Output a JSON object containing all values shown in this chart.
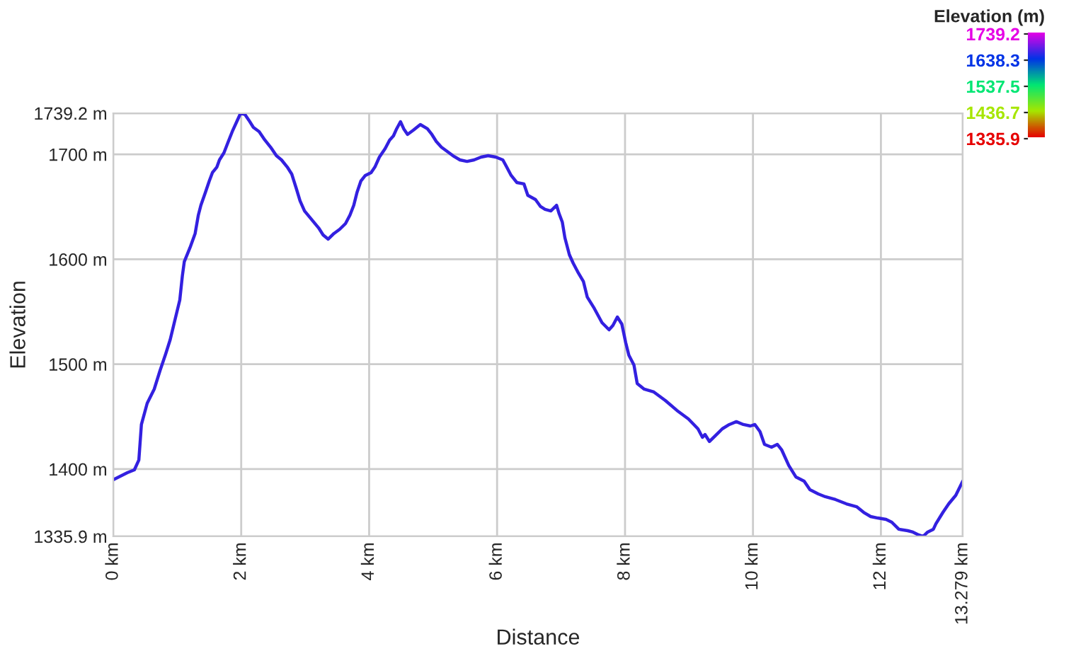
{
  "chart_data": {
    "type": "line",
    "xlabel": "Distance",
    "ylabel": "Elevation",
    "clabel": "Elevation (m)",
    "x": [
      0,
      0.22,
      0.33,
      0.4,
      0.44,
      0.53,
      0.64,
      0.73,
      0.82,
      0.89,
      0.97,
      1.04,
      1.08,
      1.11,
      1.2,
      1.28,
      1.33,
      1.37,
      1.44,
      1.5,
      1.55,
      1.62,
      1.66,
      1.73,
      1.79,
      1.86,
      1.93,
      1.99,
      2.06,
      2.12,
      2.19,
      2.28,
      2.37,
      2.46,
      2.55,
      2.63,
      2.72,
      2.79,
      2.86,
      2.92,
      2.99,
      3.1,
      3.21,
      3.28,
      3.36,
      3.45,
      3.54,
      3.63,
      3.7,
      3.76,
      3.81,
      3.87,
      3.94,
      4.03,
      4.09,
      4.16,
      4.25,
      4.32,
      4.38,
      4.43,
      4.49,
      4.54,
      4.6,
      4.69,
      4.8,
      4.91,
      4.98,
      5.05,
      5.13,
      5.22,
      5.31,
      5.42,
      5.53,
      5.64,
      5.75,
      5.86,
      5.98,
      6.09,
      6.15,
      6.22,
      6.31,
      6.42,
      6.48,
      6.6,
      6.68,
      6.75,
      6.84,
      6.91,
      6.93,
      6.97,
      7.02,
      7.06,
      7.13,
      7.19,
      7.26,
      7.35,
      7.41,
      7.52,
      7.64,
      7.75,
      7.81,
      7.88,
      7.95,
      8.01,
      8.06,
      8.14,
      8.19,
      8.3,
      8.45,
      8.63,
      8.81,
      8.99,
      9.14,
      9.21,
      9.25,
      9.32,
      9.41,
      9.52,
      9.63,
      9.74,
      9.85,
      9.96,
      10.03,
      10.11,
      10.18,
      10.29,
      10.38,
      10.45,
      10.56,
      10.67,
      10.8,
      10.89,
      11.02,
      11.13,
      11.29,
      11.46,
      11.62,
      11.73,
      11.84,
      11.95,
      12.08,
      12.17,
      12.28,
      12.42,
      12.5,
      12.59,
      12.66,
      12.73,
      12.82,
      12.86,
      12.97,
      13.06,
      13.17,
      13.279
    ],
    "series": [
      {
        "color": "#3320e0",
        "values": [
          1389.9,
          1396.6,
          1399.3,
          1408.7,
          1442.5,
          1462.7,
          1476.2,
          1493.7,
          1509.9,
          1523.4,
          1543.6,
          1561.2,
          1584.1,
          1597.6,
          1611.1,
          1624.6,
          1642.1,
          1651.5,
          1663.7,
          1674.5,
          1682.6,
          1687.9,
          1694.7,
          1701.4,
          1710.9,
          1721.7,
          1731.1,
          1739.2,
          1737.9,
          1732.5,
          1725.7,
          1721.7,
          1713.6,
          1706.8,
          1698.7,
          1694.7,
          1687.9,
          1681.2,
          1667.7,
          1655.6,
          1646.1,
          1638.0,
          1629.9,
          1623.2,
          1619.2,
          1624.6,
          1628.6,
          1634.0,
          1642.1,
          1651.5,
          1663.7,
          1674.5,
          1679.9,
          1682.6,
          1687.9,
          1697.4,
          1705.5,
          1713.6,
          1717.6,
          1724.4,
          1731.1,
          1724.4,
          1719.0,
          1723.0,
          1728.4,
          1724.4,
          1719.0,
          1712.2,
          1706.8,
          1702.8,
          1698.7,
          1694.7,
          1693.3,
          1694.7,
          1697.4,
          1698.7,
          1697.4,
          1694.7,
          1687.9,
          1679.9,
          1673.1,
          1671.8,
          1661.0,
          1656.9,
          1650.2,
          1647.5,
          1646.1,
          1650.2,
          1651.5,
          1643.4,
          1635.3,
          1620.5,
          1604.3,
          1596.2,
          1588.1,
          1578.7,
          1563.9,
          1553.1,
          1539.6,
          1532.8,
          1536.9,
          1545.0,
          1538.2,
          1520.7,
          1508.6,
          1499.1,
          1481.6,
          1476.2,
          1473.5,
          1465.4,
          1456.0,
          1447.9,
          1438.4,
          1430.3,
          1433.0,
          1426.3,
          1431.7,
          1438.4,
          1442.5,
          1445.2,
          1442.5,
          1441.1,
          1442.5,
          1435.7,
          1423.6,
          1420.9,
          1423.6,
          1418.2,
          1403.4,
          1392.6,
          1388.5,
          1380.4,
          1376.4,
          1373.7,
          1371.0,
          1366.9,
          1364.2,
          1358.8,
          1354.8,
          1353.4,
          1352.1,
          1349.4,
          1342.7,
          1341.3,
          1340.0,
          1337.3,
          1335.9,
          1340.0,
          1342.7,
          1348.0,
          1358.8,
          1366.9,
          1375.0,
          1388.5
        ]
      }
    ],
    "xlim": [
      0,
      13.279
    ],
    "xticks": [
      {
        "value": 0,
        "label": "0 km"
      },
      {
        "value": 2,
        "label": "2 km"
      },
      {
        "value": 4,
        "label": "4 km"
      },
      {
        "value": 6,
        "label": "6 km"
      },
      {
        "value": 8,
        "label": "8 km"
      },
      {
        "value": 10,
        "label": "10 km"
      },
      {
        "value": 12,
        "label": "12 km"
      },
      {
        "value": 13.279,
        "label": "13.279 km"
      }
    ],
    "ylim": [
      1335.9,
      1739.2
    ],
    "yticks": [
      {
        "value": 1335.9,
        "label": "1335.9 m"
      },
      {
        "value": 1400,
        "label": "1400 m"
      },
      {
        "value": 1500,
        "label": "1500 m"
      },
      {
        "value": 1600,
        "label": "1600 m"
      },
      {
        "value": 1700,
        "label": "1700 m"
      },
      {
        "value": 1739.2,
        "label": "1739.2 m"
      }
    ],
    "clim": [
      1335.9,
      1739.2
    ],
    "cticks": [
      1739.2,
      1638.3,
      1537.5,
      1436.7,
      1335.9
    ],
    "colors": [
      "#e600e6",
      "#0033e6",
      "#00e673",
      "#a6e600",
      "#e60000"
    ],
    "grid": true
  }
}
